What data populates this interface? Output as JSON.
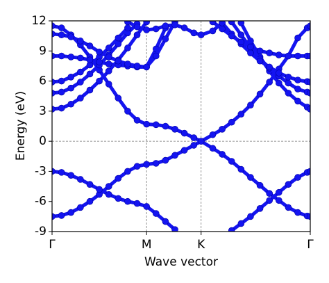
{
  "chart_data": {
    "type": "band",
    "xlabel": "Wave vector",
    "ylabel": "Energy (eV)",
    "color": "#1414f0",
    "xlim": [
      0,
      2.732
    ],
    "ylim": [
      -9,
      12
    ],
    "xticks": [
      {
        "value": 0,
        "label": "Γ"
      },
      {
        "value": 1,
        "label": "M"
      },
      {
        "value": 1.577,
        "label": "K"
      },
      {
        "value": 2.732,
        "label": "Γ"
      }
    ],
    "yticks": [
      -9,
      -6,
      -3,
      0,
      3,
      6,
      9,
      12
    ],
    "xtick_lines": true,
    "hline": 0,
    "x": [
      0,
      0.1,
      0.2,
      0.3,
      0.4,
      0.5,
      0.6,
      0.7,
      0.8,
      0.9,
      1.0,
      1.1,
      1.2,
      1.3,
      1.4,
      1.5,
      1.577,
      1.7,
      1.8,
      1.9,
      2.0,
      2.1,
      2.2,
      2.3,
      2.4,
      2.5,
      2.6,
      2.7,
      2.732
    ],
    "series": [
      {
        "values": [
          11.5,
          11.3,
          10.6,
          9.6,
          8.4,
          7.1,
          5.7,
          4.3,
          3.0,
          2.1,
          1.7,
          1.65,
          1.5,
          1.2,
          0.8,
          0.35,
          0,
          0.65,
          1.2,
          1.9,
          2.7,
          3.6,
          4.7,
          5.9,
          7.2,
          8.5,
          10.3,
          11.3,
          11.5
        ]
      },
      {
        "values": [
          3.2,
          3.3,
          3.7,
          4.3,
          5.1,
          6.0,
          7.0,
          8.1,
          9.3,
          10.6,
          11.9,
          null,
          null,
          null,
          null,
          null,
          null,
          null,
          null,
          null,
          11.8,
          10.0,
          8.4,
          7.0,
          5.8,
          4.8,
          4.0,
          3.4,
          3.2
        ]
      },
      {
        "values": [
          4.8,
          4.9,
          5.3,
          5.9,
          6.7,
          7.6,
          8.6,
          9.7,
          10.8,
          11.7,
          null,
          null,
          null,
          null,
          null,
          null,
          null,
          null,
          null,
          11.9,
          10.6,
          9.3,
          8.2,
          7.3,
          6.5,
          5.8,
          5.2,
          4.9,
          4.8
        ]
      },
      {
        "values": [
          5.9,
          6.0,
          6.4,
          6.9,
          7.6,
          8.4,
          9.3,
          10.3,
          11.3,
          null,
          null,
          null,
          null,
          null,
          null,
          null,
          null,
          null,
          11.8,
          10.7,
          9.7,
          8.8,
          8.0,
          7.4,
          6.8,
          6.4,
          6.1,
          5.95,
          5.9
        ]
      },
      {
        "values": [
          8.5,
          8.5,
          8.4,
          8.3,
          8.1,
          7.9,
          7.7,
          7.6,
          7.5,
          7.4,
          7.4,
          9.2,
          11.3,
          null,
          null,
          null,
          null,
          11.9,
          11.2,
          10.5,
          9.9,
          9.4,
          9.0,
          8.8,
          8.6,
          8.5,
          8.5,
          8.5,
          8.5
        ]
      },
      {
        "values": [
          10.7,
          10.6,
          10.4,
          10.0,
          9.5,
          8.9,
          8.4,
          8.0,
          7.7,
          7.5,
          7.4,
          8.5,
          10.2,
          11.9,
          null,
          null,
          null,
          null,
          null,
          null,
          null,
          null,
          null,
          null,
          null,
          null,
          null,
          null,
          null
        ]
      },
      {
        "values": [
          null,
          null,
          null,
          null,
          null,
          null,
          null,
          null,
          11.9,
          11.4,
          11.1,
          11.2,
          11.5,
          11.6,
          11.3,
          10.8,
          10.6,
          11.0,
          11.8,
          null,
          null,
          null,
          null,
          null,
          null,
          null,
          null,
          null,
          null
        ]
      },
      {
        "values": [
          -7.5,
          -7.4,
          -7.1,
          -6.6,
          -6.0,
          -5.3,
          -4.5,
          -3.7,
          -3.0,
          -2.5,
          -2.3,
          -2.2,
          -1.9,
          -1.4,
          -0.9,
          -0.4,
          0,
          -0.7,
          -1.3,
          -2.0,
          -2.8,
          -3.6,
          -4.4,
          -5.2,
          -5.9,
          -6.6,
          -7.1,
          -7.45,
          -7.5
        ]
      },
      {
        "values": [
          -3.0,
          -3.1,
          -3.4,
          -3.8,
          -4.3,
          -4.8,
          -5.3,
          -5.7,
          -6.0,
          -6.2,
          -6.5,
          -7.2,
          -8.0,
          -8.8,
          null,
          null,
          null,
          null,
          null,
          -8.9,
          -8.2,
          -7.5,
          -6.7,
          -5.9,
          -5.1,
          -4.3,
          -3.6,
          -3.1,
          -3.0
        ]
      }
    ]
  }
}
